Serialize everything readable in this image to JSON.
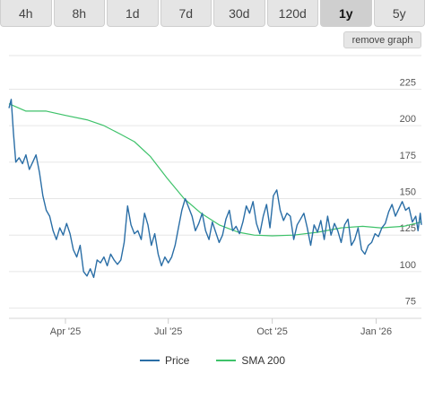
{
  "range_tabs": [
    {
      "label": "4h",
      "active": false
    },
    {
      "label": "8h",
      "active": false
    },
    {
      "label": "1d",
      "active": false
    },
    {
      "label": "7d",
      "active": false
    },
    {
      "label": "30d",
      "active": false
    },
    {
      "label": "120d",
      "active": false
    },
    {
      "label": "1y",
      "active": true
    },
    {
      "label": "5y",
      "active": false
    }
  ],
  "remove_graph_label": "remove graph",
  "chart_data": {
    "type": "line",
    "x_ticks": [
      "Apr '25",
      "Jul '25",
      "Oct '25",
      "Jan '26"
    ],
    "y_ticks": [
      75,
      100,
      125,
      150,
      175,
      200,
      225
    ],
    "ylim": [
      68,
      248
    ],
    "xlim": [
      "2025-02-10",
      "2026-02-10"
    ],
    "grid": true,
    "legend_position": "bottom",
    "series": [
      {
        "name": "Price",
        "color": "#2a6ea6",
        "points": [
          [
            "2025-02-10",
            212
          ],
          [
            "2025-02-12",
            218
          ],
          [
            "2025-02-14",
            195
          ],
          [
            "2025-02-16",
            175
          ],
          [
            "2025-02-19",
            178
          ],
          [
            "2025-02-22",
            174
          ],
          [
            "2025-02-25",
            180
          ],
          [
            "2025-02-28",
            170
          ],
          [
            "2025-03-03",
            175
          ],
          [
            "2025-03-06",
            180
          ],
          [
            "2025-03-09",
            168
          ],
          [
            "2025-03-12",
            152
          ],
          [
            "2025-03-15",
            142
          ],
          [
            "2025-03-18",
            138
          ],
          [
            "2025-03-21",
            128
          ],
          [
            "2025-03-24",
            122
          ],
          [
            "2025-03-27",
            130
          ],
          [
            "2025-03-30",
            125
          ],
          [
            "2025-04-02",
            133
          ],
          [
            "2025-04-05",
            126
          ],
          [
            "2025-04-08",
            115
          ],
          [
            "2025-04-11",
            110
          ],
          [
            "2025-04-14",
            118
          ],
          [
            "2025-04-17",
            100
          ],
          [
            "2025-04-20",
            97
          ],
          [
            "2025-04-23",
            102
          ],
          [
            "2025-04-26",
            96
          ],
          [
            "2025-04-29",
            108
          ],
          [
            "2025-05-02",
            106
          ],
          [
            "2025-05-05",
            110
          ],
          [
            "2025-05-08",
            104
          ],
          [
            "2025-05-11",
            112
          ],
          [
            "2025-05-14",
            108
          ],
          [
            "2025-05-17",
            105
          ],
          [
            "2025-05-20",
            108
          ],
          [
            "2025-05-23",
            120
          ],
          [
            "2025-05-26",
            145
          ],
          [
            "2025-05-29",
            132
          ],
          [
            "2025-06-01",
            126
          ],
          [
            "2025-06-04",
            128
          ],
          [
            "2025-06-07",
            122
          ],
          [
            "2025-06-10",
            140
          ],
          [
            "2025-06-13",
            132
          ],
          [
            "2025-06-16",
            118
          ],
          [
            "2025-06-19",
            126
          ],
          [
            "2025-06-22",
            112
          ],
          [
            "2025-06-25",
            104
          ],
          [
            "2025-06-28",
            110
          ],
          [
            "2025-07-01",
            106
          ],
          [
            "2025-07-04",
            110
          ],
          [
            "2025-07-07",
            118
          ],
          [
            "2025-07-10",
            130
          ],
          [
            "2025-07-13",
            142
          ],
          [
            "2025-07-16",
            150
          ],
          [
            "2025-07-19",
            144
          ],
          [
            "2025-07-22",
            138
          ],
          [
            "2025-07-25",
            128
          ],
          [
            "2025-07-28",
            133
          ],
          [
            "2025-07-31",
            140
          ],
          [
            "2025-08-03",
            128
          ],
          [
            "2025-08-06",
            122
          ],
          [
            "2025-08-09",
            134
          ],
          [
            "2025-08-12",
            127
          ],
          [
            "2025-08-15",
            120
          ],
          [
            "2025-08-18",
            125
          ],
          [
            "2025-08-21",
            136
          ],
          [
            "2025-08-24",
            142
          ],
          [
            "2025-08-27",
            128
          ],
          [
            "2025-08-30",
            131
          ],
          [
            "2025-09-02",
            126
          ],
          [
            "2025-09-05",
            134
          ],
          [
            "2025-09-08",
            145
          ],
          [
            "2025-09-11",
            140
          ],
          [
            "2025-09-14",
            148
          ],
          [
            "2025-09-17",
            133
          ],
          [
            "2025-09-20",
            126
          ],
          [
            "2025-09-23",
            138
          ],
          [
            "2025-09-26",
            146
          ],
          [
            "2025-09-29",
            130
          ],
          [
            "2025-10-02",
            152
          ],
          [
            "2025-10-05",
            156
          ],
          [
            "2025-10-08",
            142
          ],
          [
            "2025-10-11",
            135
          ],
          [
            "2025-10-14",
            140
          ],
          [
            "2025-10-17",
            138
          ],
          [
            "2025-10-20",
            122
          ],
          [
            "2025-10-23",
            132
          ],
          [
            "2025-10-26",
            136
          ],
          [
            "2025-10-29",
            140
          ],
          [
            "2025-11-01",
            130
          ],
          [
            "2025-11-04",
            118
          ],
          [
            "2025-11-07",
            132
          ],
          [
            "2025-11-10",
            127
          ],
          [
            "2025-11-13",
            135
          ],
          [
            "2025-11-16",
            122
          ],
          [
            "2025-11-19",
            138
          ],
          [
            "2025-11-22",
            125
          ],
          [
            "2025-11-25",
            133
          ],
          [
            "2025-11-28",
            128
          ],
          [
            "2025-12-01",
            120
          ],
          [
            "2025-12-04",
            132
          ],
          [
            "2025-12-07",
            136
          ],
          [
            "2025-12-10",
            118
          ],
          [
            "2025-12-13",
            122
          ],
          [
            "2025-12-16",
            130
          ],
          [
            "2025-12-19",
            115
          ],
          [
            "2025-12-22",
            112
          ],
          [
            "2025-12-25",
            118
          ],
          [
            "2025-12-28",
            120
          ],
          [
            "2025-12-31",
            126
          ],
          [
            "2026-01-03",
            124
          ],
          [
            "2026-01-06",
            130
          ],
          [
            "2026-01-09",
            133
          ],
          [
            "2026-01-12",
            141
          ],
          [
            "2026-01-15",
            146
          ],
          [
            "2026-01-18",
            138
          ],
          [
            "2026-01-21",
            143
          ],
          [
            "2026-01-24",
            148
          ],
          [
            "2026-01-27",
            142
          ],
          [
            "2026-01-30",
            144
          ],
          [
            "2026-02-02",
            134
          ],
          [
            "2026-02-05",
            138
          ],
          [
            "2026-02-07",
            128
          ],
          [
            "2026-02-09",
            140
          ],
          [
            "2026-02-10",
            132
          ]
        ]
      },
      {
        "name": "SMA 200",
        "color": "#3ec26a",
        "points": [
          [
            "2025-02-10",
            215
          ],
          [
            "2025-02-25",
            210
          ],
          [
            "2025-03-15",
            210
          ],
          [
            "2025-04-01",
            207
          ],
          [
            "2025-04-20",
            204
          ],
          [
            "2025-05-05",
            200
          ],
          [
            "2025-05-20",
            194
          ],
          [
            "2025-06-01",
            189
          ],
          [
            "2025-06-15",
            179
          ],
          [
            "2025-06-30",
            164
          ],
          [
            "2025-07-15",
            150
          ],
          [
            "2025-07-30",
            140
          ],
          [
            "2025-08-15",
            132
          ],
          [
            "2025-09-01",
            127
          ],
          [
            "2025-09-15",
            125
          ],
          [
            "2025-10-01",
            124.5
          ],
          [
            "2025-10-20",
            125
          ],
          [
            "2025-11-10",
            127
          ],
          [
            "2025-12-01",
            130
          ],
          [
            "2025-12-20",
            131
          ],
          [
            "2026-01-05",
            130
          ],
          [
            "2026-01-25",
            131
          ],
          [
            "2026-02-10",
            134
          ]
        ]
      }
    ]
  }
}
